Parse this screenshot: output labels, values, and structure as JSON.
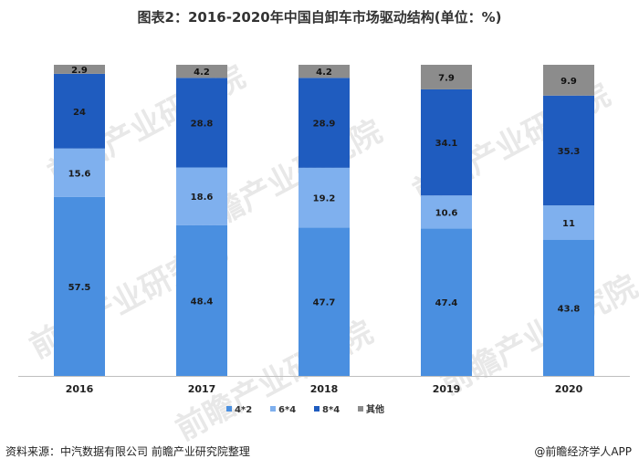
{
  "title": "图表2：2016-2020年中国自卸车市场驱动结构(单位：%)",
  "source": "资料来源：中汽数据有限公司 前瞻产业研究院整理",
  "brand": "@前瞻经济学人APP",
  "watermark": "前瞻产业研究院",
  "chart_data": {
    "type": "bar",
    "stacked": true,
    "categories": [
      "2016",
      "2017",
      "2018",
      "2019",
      "2020"
    ],
    "series": [
      {
        "name": "4*2",
        "color": "#4a8fe0",
        "values": [
          57.5,
          48.4,
          47.7,
          47.4,
          43.8
        ]
      },
      {
        "name": "6*4",
        "color": "#7fb0ee",
        "values": [
          15.6,
          18.6,
          19.2,
          10.6,
          11
        ]
      },
      {
        "name": "8*4",
        "color": "#1f5cbf",
        "values": [
          24,
          28.8,
          28.9,
          34.1,
          35.3
        ]
      },
      {
        "name": "其他",
        "color": "#8c8c8c",
        "values": [
          2.9,
          4.2,
          4.2,
          7.9,
          9.9
        ]
      }
    ],
    "ylim": [
      0,
      100
    ],
    "grid": false,
    "legend": "bottom"
  }
}
